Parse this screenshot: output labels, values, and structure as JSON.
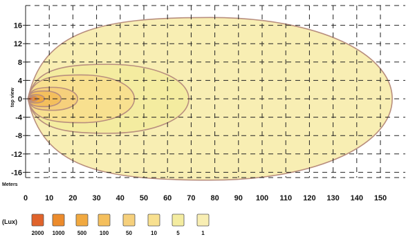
{
  "chart_data": {
    "type": "contour",
    "title": "",
    "xlabel": "Meters",
    "ylabel": "top view",
    "xlim": [
      0,
      158
    ],
    "ylim": [
      -19,
      19
    ],
    "x_ticks": [
      0,
      10,
      20,
      30,
      40,
      50,
      60,
      70,
      80,
      90,
      100,
      110,
      120,
      130,
      140,
      150
    ],
    "y_ticks": [
      16,
      12,
      8,
      4,
      0,
      -4,
      -8,
      -12,
      -16
    ],
    "grid": true,
    "legend": {
      "unit": "(Lux)",
      "placement": "bottom-left",
      "entries": [
        {
          "label": "2000",
          "color": "#e0632b"
        },
        {
          "label": "1000",
          "color": "#ec8b2c"
        },
        {
          "label": "500",
          "color": "#f1a940"
        },
        {
          "label": "100",
          "color": "#f4bf5d"
        },
        {
          "label": "50",
          "color": "#f6d07c"
        },
        {
          "label": "10",
          "color": "#f8e08f"
        },
        {
          "label": "5",
          "color": "#f4eca0"
        },
        {
          "label": "1",
          "color": "#f8eeb3"
        }
      ]
    },
    "series": [
      {
        "name": "1",
        "x_start": 1,
        "x_end": 155,
        "half_width": 17.7,
        "color": "#f8eeb3"
      },
      {
        "name": "5",
        "x_start": 1,
        "x_end": 69,
        "half_width": 7.5,
        "color": "#f4eca0"
      },
      {
        "name": "10",
        "x_start": 1,
        "x_end": 46,
        "half_width": 5.2,
        "color": "#f8e08f"
      },
      {
        "name": "50",
        "x_start": 1,
        "x_end": 22,
        "half_width": 2.5,
        "color": "#f6d07c"
      },
      {
        "name": "100",
        "x_start": 1,
        "x_end": 15,
        "half_width": 1.7,
        "color": "#f4bf5d"
      },
      {
        "name": "500",
        "x_start": 1,
        "x_end": 8,
        "half_width": 0.9,
        "color": "#f1a940"
      },
      {
        "name": "1000",
        "x_start": 1,
        "x_end": 5,
        "half_width": 0.55,
        "color": "#ec8b2c"
      },
      {
        "name": "2000",
        "x_start": 1,
        "x_end": 3,
        "half_width": 0.3,
        "color": "#e0632b"
      }
    ]
  }
}
